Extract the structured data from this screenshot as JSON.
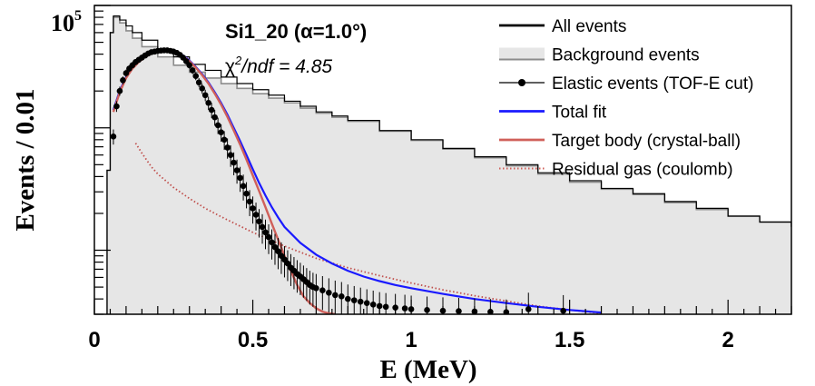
{
  "chart_data": {
    "type": "line",
    "title": "Si1_20 (α=1.0°)",
    "subtitle_prefix": "χ",
    "subtitle_sup": "2",
    "subtitle_rest": "/ndf = 4.85",
    "xlabel": "E (MeV)",
    "ylabel": "Events / 0.01",
    "xlim": [
      0,
      2.2
    ],
    "ylog": true,
    "ylim": [
      300,
      100000
    ],
    "x_ticks": [
      {
        "value": 0,
        "label": "0"
      },
      {
        "value": 0.5,
        "label": "0.5"
      },
      {
        "value": 1,
        "label": "1"
      },
      {
        "value": 1.5,
        "label": "1.5"
      },
      {
        "value": 2,
        "label": "2"
      }
    ],
    "y_tick_label": {
      "value": 100000,
      "base": "10",
      "exp": "5"
    },
    "legend": [
      {
        "key": "all",
        "label": "All events",
        "color": "#000000",
        "style": "line"
      },
      {
        "key": "bg",
        "label": "Background events",
        "color": "#9a9a9a",
        "style": "band"
      },
      {
        "key": "elastic",
        "label": "Elastic events (TOF-E cut)",
        "color": "#000000",
        "style": "marker"
      },
      {
        "key": "total",
        "label": "Total fit",
        "color": "#1a1aff",
        "style": "line"
      },
      {
        "key": "target",
        "label": "Target body (crystal-ball)",
        "color": "#d0605a",
        "style": "line"
      },
      {
        "key": "gas",
        "label": "Residual gas (coulomb)",
        "color": "#d0605a",
        "style": "dotted"
      }
    ],
    "colors": {
      "background_fill": "#e6e6e6",
      "all_events": "#000000",
      "background_line": "#8c8c8c",
      "total_fit": "#1a1aff",
      "target_body": "#d0605a",
      "residual_gas": "#c0504d"
    },
    "series": [
      {
        "name": "All events",
        "x": [
          0.04,
          0.05,
          0.06,
          0.08,
          0.1,
          0.12,
          0.15,
          0.2,
          0.25,
          0.3,
          0.35,
          0.4,
          0.45,
          0.5,
          0.55,
          0.6,
          0.65,
          0.7,
          0.75,
          0.8,
          0.9,
          1.0,
          1.1,
          1.2,
          1.3,
          1.4,
          1.5,
          1.6,
          1.7,
          1.8,
          1.9,
          2.0,
          2.1,
          2.2
        ],
        "y": [
          4500,
          60000,
          82000,
          76000,
          68000,
          60000,
          52000,
          44000,
          38000,
          33000,
          29500,
          26000,
          23000,
          20500,
          18500,
          16500,
          15000,
          13500,
          12500,
          11500,
          9500,
          8000,
          6800,
          5800,
          5000,
          4300,
          3700,
          3200,
          2900,
          2500,
          2200,
          1900,
          1700,
          1550
        ]
      },
      {
        "name": "Background events",
        "x": [
          0.04,
          0.05,
          0.06,
          0.08,
          0.1,
          0.12,
          0.15,
          0.2,
          0.25,
          0.3,
          0.35,
          0.4,
          0.45,
          0.5,
          0.55,
          0.6,
          0.65,
          0.7,
          0.75,
          0.8,
          0.9,
          1.0,
          1.1,
          1.2,
          1.3,
          1.4,
          1.5,
          1.6,
          1.7,
          1.8,
          1.9,
          2.0,
          2.1,
          2.2
        ],
        "y": [
          4500,
          60000,
          80000,
          72000,
          62000,
          54000,
          46000,
          38000,
          32500,
          28500,
          25500,
          23000,
          21000,
          19000,
          17500,
          16000,
          14500,
          13200,
          12200,
          11300,
          9400,
          7900,
          6700,
          5700,
          4900,
          4200,
          3600,
          3150,
          2850,
          2450,
          2150,
          1900,
          1700,
          1550
        ]
      },
      {
        "name": "Elastic events (TOF-E cut)",
        "x": [
          0.06,
          0.07,
          0.08,
          0.09,
          0.1,
          0.11,
          0.12,
          0.13,
          0.14,
          0.15,
          0.16,
          0.17,
          0.18,
          0.19,
          0.2,
          0.21,
          0.22,
          0.23,
          0.24,
          0.25,
          0.26,
          0.27,
          0.28,
          0.29,
          0.3,
          0.31,
          0.32,
          0.33,
          0.34,
          0.35,
          0.36,
          0.37,
          0.38,
          0.39,
          0.4,
          0.41,
          0.42,
          0.43,
          0.44,
          0.45,
          0.46,
          0.47,
          0.48,
          0.49,
          0.5,
          0.51,
          0.52,
          0.53,
          0.54,
          0.55,
          0.56,
          0.57,
          0.58,
          0.59,
          0.6,
          0.61,
          0.62,
          0.63,
          0.64,
          0.65,
          0.66,
          0.67,
          0.68,
          0.69,
          0.7,
          0.72,
          0.74,
          0.76,
          0.78,
          0.8,
          0.82,
          0.84,
          0.86,
          0.88,
          0.9,
          0.92,
          0.95,
          0.98,
          1.0,
          1.05,
          1.1,
          1.15,
          1.2,
          1.25,
          1.3,
          1.37,
          1.48
        ],
        "y": [
          8500,
          15000,
          20000,
          24500,
          28000,
          30500,
          32500,
          34500,
          36000,
          37500,
          39000,
          40500,
          41500,
          42000,
          42500,
          42800,
          43000,
          43000,
          42500,
          42000,
          41000,
          39500,
          37500,
          35000,
          32500,
          29500,
          26500,
          23500,
          21000,
          18500,
          16000,
          14000,
          12200,
          10500,
          9200,
          8000,
          6900,
          6000,
          5200,
          4500,
          3900,
          3350,
          2900,
          2500,
          2200,
          1950,
          1720,
          1550,
          1400,
          1280,
          1160,
          1060,
          980,
          900,
          840,
          780,
          720,
          680,
          640,
          610,
          580,
          550,
          520,
          500,
          490,
          470,
          450,
          430,
          420,
          400,
          390,
          380,
          370,
          360,
          350,
          345,
          340,
          335,
          330,
          325,
          320,
          318,
          316,
          314,
          312,
          330,
          320
        ],
        "err": [
          1200,
          1500,
          1700,
          1800,
          1900,
          2000,
          2000,
          2000,
          2000,
          2000,
          2000,
          2000,
          2000,
          2000,
          2000,
          2000,
          2000,
          2000,
          2000,
          2000,
          2000,
          2000,
          2000,
          2000,
          2000,
          2000,
          2000,
          2000,
          2000,
          2000,
          2000,
          2000,
          1800,
          1600,
          1500,
          1400,
          1300,
          1200,
          1100,
          1000,
          900,
          800,
          700,
          600,
          550,
          500,
          450,
          420,
          380,
          350,
          320,
          300,
          280,
          260,
          240,
          220,
          210,
          200,
          190,
          180,
          170,
          165,
          160,
          155,
          150,
          145,
          140,
          135,
          130,
          125,
          120,
          115,
          110,
          108,
          105,
          102,
          100,
          98,
          96,
          94,
          92,
          90,
          88,
          86,
          84,
          120,
          110
        ]
      },
      {
        "name": "Total fit",
        "x": [
          0.06,
          0.08,
          0.1,
          0.12,
          0.14,
          0.16,
          0.18,
          0.2,
          0.22,
          0.24,
          0.26,
          0.28,
          0.3,
          0.32,
          0.34,
          0.36,
          0.38,
          0.4,
          0.42,
          0.44,
          0.46,
          0.48,
          0.5,
          0.52,
          0.54,
          0.56,
          0.58,
          0.6,
          0.65,
          0.7,
          0.75,
          0.8,
          0.85,
          0.9,
          0.95,
          1.0,
          1.1,
          1.2,
          1.3,
          1.4,
          1.5,
          1.6
        ],
        "y": [
          14000,
          20000,
          26000,
          31000,
          35000,
          38500,
          41000,
          42500,
          43000,
          42800,
          41500,
          39000,
          35500,
          31500,
          27500,
          23500,
          19500,
          16000,
          12800,
          10000,
          7800,
          6000,
          4600,
          3550,
          2800,
          2250,
          1850,
          1550,
          1150,
          920,
          780,
          680,
          610,
          560,
          520,
          490,
          440,
          400,
          370,
          345,
          325,
          310
        ]
      },
      {
        "name": "Target body (crystal-ball)",
        "x": [
          0.06,
          0.08,
          0.1,
          0.12,
          0.14,
          0.16,
          0.18,
          0.2,
          0.22,
          0.24,
          0.26,
          0.28,
          0.3,
          0.32,
          0.34,
          0.36,
          0.38,
          0.4,
          0.42,
          0.44,
          0.46,
          0.48,
          0.5,
          0.52,
          0.54,
          0.56,
          0.58,
          0.6,
          0.62,
          0.64,
          0.66,
          0.68,
          0.7,
          0.72,
          0.74,
          0.76
        ],
        "y": [
          13500,
          19500,
          25500,
          30500,
          34500,
          38000,
          40500,
          42000,
          42500,
          42300,
          41000,
          38500,
          35000,
          31000,
          27000,
          23000,
          19000,
          15500,
          12300,
          9500,
          7300,
          5500,
          4100,
          3050,
          2250,
          1650,
          1220,
          900,
          680,
          520,
          420,
          370,
          335,
          315,
          305,
          300
        ]
      },
      {
        "name": "Residual gas (coulomb)",
        "x": [
          0.13,
          0.15,
          0.18,
          0.2,
          0.25,
          0.3,
          0.35,
          0.4,
          0.45,
          0.5,
          0.55,
          0.6,
          0.7,
          0.8,
          0.9,
          1.0,
          1.1,
          1.2,
          1.3,
          1.4,
          1.5,
          1.6
        ],
        "y": [
          7500,
          6200,
          4800,
          4200,
          3250,
          2650,
          2200,
          1880,
          1620,
          1400,
          1230,
          1080,
          860,
          720,
          620,
          540,
          475,
          425,
          385,
          350,
          325,
          305
        ]
      }
    ]
  }
}
